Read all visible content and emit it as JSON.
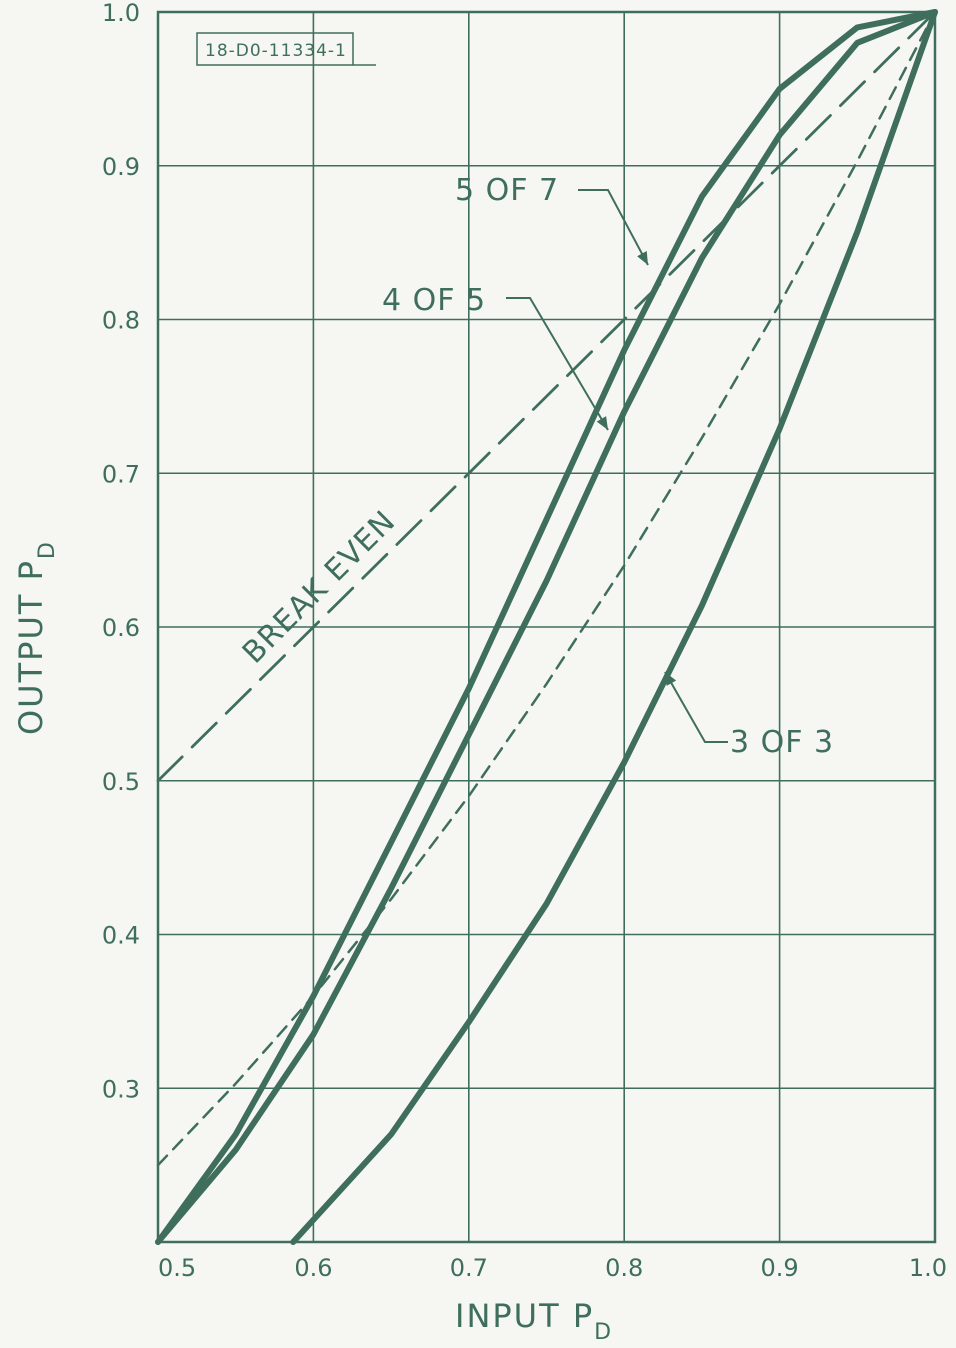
{
  "chart_data": {
    "type": "line",
    "xlabel": "INPUT P",
    "xlabel_sub": "D",
    "ylabel": "OUTPUT P",
    "ylabel_sub": "D",
    "xlim": [
      0.5,
      1.0
    ],
    "ylim": [
      0.2,
      1.0
    ],
    "x_ticks": [
      "0.5",
      "0.6",
      "0.7",
      "0.8",
      "0.9",
      "1.0"
    ],
    "y_ticks": [
      "0.3",
      "0.4",
      "0.5",
      "0.6",
      "0.7",
      "0.8",
      "0.9",
      "1.0"
    ],
    "grid": true,
    "drawing_number": "18-D0-11334-1",
    "series": [
      {
        "name": "5 OF 7",
        "style": "solid",
        "points": [
          [
            0.5,
            0.2
          ],
          [
            0.55,
            0.27
          ],
          [
            0.6,
            0.36
          ],
          [
            0.65,
            0.46
          ],
          [
            0.7,
            0.56
          ],
          [
            0.75,
            0.67
          ],
          [
            0.8,
            0.78
          ],
          [
            0.85,
            0.88
          ],
          [
            0.9,
            0.95
          ],
          [
            0.95,
            0.99
          ],
          [
            1.0,
            1.0
          ]
        ]
      },
      {
        "name": "4 OF 5",
        "style": "solid",
        "points": [
          [
            0.5,
            0.2
          ],
          [
            0.55,
            0.26
          ],
          [
            0.6,
            0.335
          ],
          [
            0.65,
            0.43
          ],
          [
            0.7,
            0.53
          ],
          [
            0.75,
            0.63
          ],
          [
            0.8,
            0.74
          ],
          [
            0.85,
            0.84
          ],
          [
            0.9,
            0.92
          ],
          [
            0.95,
            0.98
          ],
          [
            1.0,
            1.0
          ]
        ]
      },
      {
        "name": "3 OF 3",
        "style": "solid",
        "points": [
          [
            0.587,
            0.2
          ],
          [
            0.65,
            0.27
          ],
          [
            0.7,
            0.343
          ],
          [
            0.75,
            0.42
          ],
          [
            0.8,
            0.512
          ],
          [
            0.85,
            0.614
          ],
          [
            0.9,
            0.729
          ],
          [
            0.95,
            0.857
          ],
          [
            1.0,
            1.0
          ]
        ]
      },
      {
        "name": "",
        "style": "dashed",
        "points": [
          [
            0.5,
            0.25
          ],
          [
            0.55,
            0.303
          ],
          [
            0.6,
            0.36
          ],
          [
            0.65,
            0.423
          ],
          [
            0.7,
            0.49
          ],
          [
            0.75,
            0.563
          ],
          [
            0.8,
            0.64
          ],
          [
            0.85,
            0.723
          ],
          [
            0.9,
            0.81
          ],
          [
            0.95,
            0.903
          ],
          [
            1.0,
            1.0
          ]
        ]
      },
      {
        "name": "BREAK EVEN",
        "style": "long-dash",
        "points": [
          [
            0.5,
            0.5
          ],
          [
            1.0,
            1.0
          ]
        ]
      }
    ],
    "annotations": [
      {
        "text": "5 OF 7",
        "target": "5 OF 7"
      },
      {
        "text": "4 OF 5",
        "target": "4 OF 5"
      },
      {
        "text": "3 OF 3",
        "target": "3 OF 3"
      },
      {
        "text": "BREAK EVEN",
        "target": "BREAK EVEN"
      }
    ]
  }
}
